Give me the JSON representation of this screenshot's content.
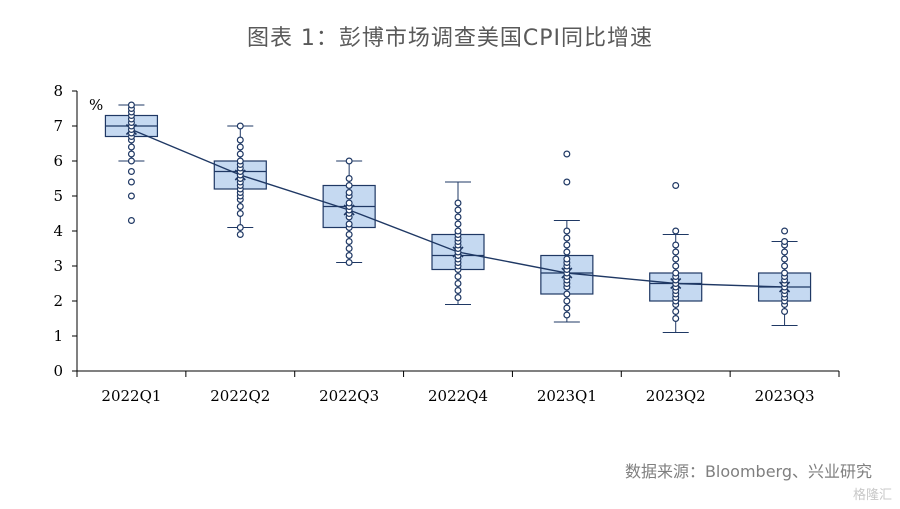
{
  "header": {
    "title": "图表 1：彭博市场调查美国CPI同比增速"
  },
  "footer": {
    "source": "数据来源：Bloomberg、兴业研究",
    "watermark": "格隆汇"
  },
  "chart_data": {
    "type": "box",
    "title": "图表 1：彭博市场调查美国CPI同比增速",
    "ylabel": "%",
    "ylim": [
      0,
      8
    ],
    "yticks": [
      0,
      1,
      2,
      3,
      4,
      5,
      6,
      7,
      8
    ],
    "grid": false,
    "colors": {
      "box_fill": "#c5d9f1",
      "box_stroke": "#1f3864",
      "line": "#1f3864",
      "point": "#1f3864"
    },
    "categories": [
      "2022Q1",
      "2022Q2",
      "2022Q3",
      "2022Q4",
      "2023Q1",
      "2023Q2",
      "2023Q3"
    ],
    "boxes": [
      {
        "whisker_low": 6.0,
        "q1": 6.7,
        "median": 7.0,
        "q3": 7.3,
        "whisker_high": 7.6,
        "mean": 6.9,
        "points": [
          4.3,
          5.0,
          5.4,
          5.7,
          6.0,
          6.2,
          6.4,
          6.6,
          6.7,
          6.8,
          6.9,
          7.0,
          7.1,
          7.2,
          7.3,
          7.4,
          7.5,
          7.6
        ]
      },
      {
        "whisker_low": 4.1,
        "q1": 5.2,
        "median": 5.7,
        "q3": 6.0,
        "whisker_high": 7.0,
        "mean": 5.6,
        "points": [
          3.9,
          4.1,
          4.5,
          4.7,
          4.9,
          5.0,
          5.1,
          5.2,
          5.3,
          5.4,
          5.5,
          5.6,
          5.7,
          5.8,
          5.9,
          6.0,
          6.2,
          6.4,
          6.6,
          7.0
        ]
      },
      {
        "whisker_low": 3.1,
        "q1": 4.1,
        "median": 4.7,
        "q3": 5.3,
        "whisker_high": 6.0,
        "mean": 4.6,
        "points": [
          3.1,
          3.3,
          3.5,
          3.7,
          3.9,
          4.1,
          4.2,
          4.4,
          4.5,
          4.6,
          4.7,
          4.8,
          5.0,
          5.1,
          5.3,
          5.5,
          6.0
        ]
      },
      {
        "whisker_low": 1.9,
        "q1": 2.9,
        "median": 3.3,
        "q3": 3.9,
        "whisker_high": 5.4,
        "mean": 3.4,
        "points": [
          2.1,
          2.3,
          2.5,
          2.7,
          2.9,
          3.0,
          3.1,
          3.2,
          3.3,
          3.4,
          3.5,
          3.6,
          3.7,
          3.8,
          3.9,
          4.0,
          4.2,
          4.4,
          4.6,
          4.8
        ]
      },
      {
        "whisker_low": 1.4,
        "q1": 2.2,
        "median": 2.8,
        "q3": 3.3,
        "whisker_high": 4.3,
        "mean": 2.8,
        "points": [
          1.6,
          1.8,
          2.0,
          2.2,
          2.4,
          2.5,
          2.6,
          2.7,
          2.8,
          2.9,
          3.0,
          3.1,
          3.2,
          3.4,
          3.6,
          3.8,
          4.0,
          5.4,
          6.2
        ]
      },
      {
        "whisker_low": 1.1,
        "q1": 2.0,
        "median": 2.5,
        "q3": 2.8,
        "whisker_high": 3.9,
        "mean": 2.5,
        "points": [
          1.5,
          1.7,
          1.9,
          2.0,
          2.1,
          2.2,
          2.3,
          2.4,
          2.5,
          2.6,
          2.7,
          2.8,
          3.0,
          3.2,
          3.4,
          3.6,
          4.0,
          5.3
        ]
      },
      {
        "whisker_low": 1.3,
        "q1": 2.0,
        "median": 2.4,
        "q3": 2.8,
        "whisker_high": 3.7,
        "mean": 2.4,
        "points": [
          1.7,
          1.9,
          2.0,
          2.1,
          2.2,
          2.3,
          2.4,
          2.5,
          2.6,
          2.7,
          2.8,
          3.0,
          3.2,
          3.4,
          3.6,
          3.7,
          4.0
        ]
      }
    ]
  }
}
